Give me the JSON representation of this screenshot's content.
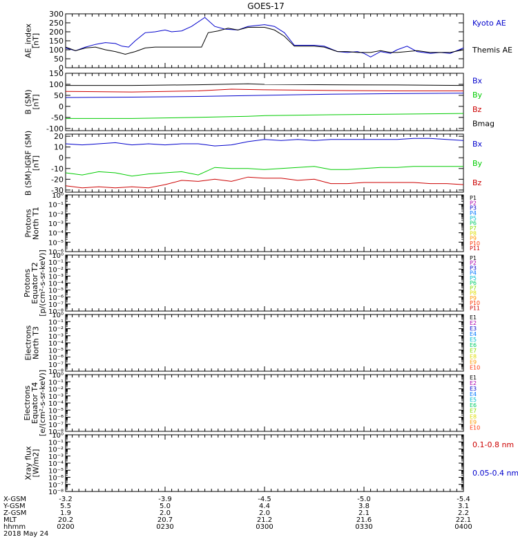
{
  "title": "GOES-17",
  "colors": {
    "black": "#000000",
    "blue": "#0000cc",
    "green": "#00cc00",
    "red": "#cc0000"
  },
  "channel_palette": [
    "#000000",
    "#aa00aa",
    "#0000cc",
    "#0077ff",
    "#00bbcc",
    "#00cc66",
    "#88dd00",
    "#dddd00",
    "#ff9900",
    "#ff3300",
    "#cc0000"
  ],
  "x_axis": {
    "rows": [
      {
        "label": "X-GSM",
        "values": [
          "-3.2",
          "-3.9",
          "-4.5",
          "-5.0",
          "-5.4"
        ]
      },
      {
        "label": "Y-GSM",
        "values": [
          "5.5",
          "5.0",
          "4.4",
          "3.8",
          "3.1"
        ]
      },
      {
        "label": "Z-GSM",
        "values": [
          "1.9",
          "2.0",
          "2.0",
          "2.1",
          "2.2"
        ]
      },
      {
        "label": "MLT",
        "values": [
          "20.2",
          "20.7",
          "21.2",
          "21.6",
          "22.1"
        ]
      },
      {
        "label": "hhmm",
        "values": [
          "0200",
          "0230",
          "0300",
          "0330",
          "0400"
        ]
      }
    ],
    "date": "2018 May 24",
    "time_range_min": [
      0,
      120
    ]
  },
  "chart_data": [
    {
      "type": "line",
      "ylabel": [
        "AE_index",
        "[nT]"
      ],
      "yscale": "linear",
      "ylim": [
        0,
        300
      ],
      "yticks": [
        0,
        50,
        100,
        150,
        200,
        250,
        300
      ],
      "yticklabels": [
        "0",
        "50",
        "100",
        "150",
        "200",
        "250",
        "300"
      ],
      "legend": [
        {
          "text": "Kyoto AE",
          "color": "#0000cc"
        },
        {
          "text": "Themis AE",
          "color": "#000000"
        }
      ],
      "series": [
        {
          "name": "Kyoto AE",
          "color": "#0000cc",
          "x": [
            0,
            3,
            6,
            9,
            12,
            15,
            17,
            19,
            21,
            24,
            27,
            30,
            32,
            35,
            38,
            42,
            45,
            48,
            52,
            55,
            60,
            63,
            66,
            69,
            72,
            75,
            78,
            82,
            85,
            88,
            90,
            92,
            95,
            98,
            100,
            103,
            106,
            110,
            113,
            116,
            120
          ],
          "y": [
            110,
            95,
            115,
            130,
            140,
            135,
            120,
            115,
            150,
            195,
            200,
            210,
            200,
            205,
            230,
            280,
            230,
            215,
            210,
            230,
            240,
            230,
            195,
            125,
            125,
            125,
            120,
            90,
            85,
            90,
            80,
            60,
            90,
            80,
            100,
            120,
            90,
            80,
            85,
            80,
            110
          ]
        },
        {
          "name": "Themis AE",
          "color": "#000000",
          "x": [
            0,
            3,
            6,
            9,
            12,
            15,
            18,
            21,
            24,
            27,
            30,
            33,
            37,
            41,
            43,
            46,
            49,
            52,
            55,
            60,
            63,
            66,
            69,
            72,
            75,
            78,
            82,
            85,
            88,
            90,
            92,
            95,
            98,
            100,
            103,
            106,
            110,
            113,
            116,
            120
          ],
          "y": [
            115,
            95,
            110,
            115,
            100,
            90,
            75,
            90,
            110,
            115,
            115,
            115,
            115,
            115,
            195,
            205,
            220,
            210,
            225,
            225,
            210,
            175,
            120,
            120,
            120,
            115,
            90,
            90,
            85,
            85,
            85,
            95,
            85,
            85,
            90,
            95,
            85,
            85,
            85,
            100
          ]
        }
      ]
    },
    {
      "type": "line",
      "ylabel": [
        "B (SM)",
        "[nT]"
      ],
      "yscale": "linear",
      "ylim": [
        -110,
        150
      ],
      "yticks": [
        -100,
        -50,
        0,
        50,
        100,
        150
      ],
      "yticklabels": [
        "-100",
        "-50",
        "0",
        "50",
        "100",
        "150"
      ],
      "legend": [
        {
          "text": "Bx",
          "color": "#0000cc"
        },
        {
          "text": "By",
          "color": "#00cc00"
        },
        {
          "text": "Bz",
          "color": "#cc0000"
        },
        {
          "text": "Bmag",
          "color": "#000000"
        }
      ],
      "series": [
        {
          "name": "Bx",
          "color": "#0000cc",
          "x": [
            0,
            20,
            40,
            60,
            80,
            100,
            120
          ],
          "y": [
            40,
            42,
            45,
            50,
            55,
            58,
            60
          ]
        },
        {
          "name": "By",
          "color": "#00cc00",
          "x": [
            0,
            20,
            40,
            55,
            60,
            80,
            100,
            120
          ],
          "y": [
            -55,
            -55,
            -50,
            -45,
            -42,
            -38,
            -35,
            -32
          ]
        },
        {
          "name": "Bz",
          "color": "#cc0000",
          "x": [
            0,
            20,
            40,
            50,
            60,
            80,
            100,
            120
          ],
          "y": [
            68,
            65,
            70,
            78,
            75,
            72,
            70,
            70
          ]
        },
        {
          "name": "Bmag",
          "color": "#000000",
          "x": [
            0,
            20,
            40,
            55,
            60,
            80,
            100,
            120
          ],
          "y": [
            95,
            95,
            98,
            102,
            100,
            98,
            97,
            95
          ]
        }
      ]
    },
    {
      "type": "line",
      "ylabel": [
        "B (SM)-IGRF (SM)",
        "[nT]"
      ],
      "yscale": "linear",
      "ylim": [
        -32,
        22
      ],
      "yticks": [
        -30,
        -20,
        -10,
        0,
        10,
        20
      ],
      "yticklabels": [
        "-30",
        "-20",
        "-10",
        "0",
        "10",
        "20"
      ],
      "legend": [
        {
          "text": "Bx",
          "color": "#0000cc"
        },
        {
          "text": "By",
          "color": "#00cc00"
        },
        {
          "text": "Bz",
          "color": "#cc0000"
        }
      ],
      "series": [
        {
          "name": "Bx",
          "color": "#0000cc",
          "x": [
            0,
            5,
            10,
            15,
            20,
            25,
            30,
            35,
            40,
            45,
            50,
            55,
            60,
            65,
            70,
            75,
            80,
            85,
            90,
            95,
            100,
            105,
            110,
            115,
            120
          ],
          "y": [
            13,
            12,
            13,
            14,
            12,
            13,
            12,
            13,
            13,
            11,
            12,
            15,
            17,
            16,
            17,
            16,
            17,
            17,
            17,
            17,
            17,
            18,
            18,
            17,
            16
          ]
        },
        {
          "name": "By",
          "color": "#00cc00",
          "x": [
            0,
            5,
            10,
            15,
            20,
            25,
            30,
            35,
            40,
            45,
            50,
            55,
            60,
            65,
            70,
            75,
            80,
            85,
            90,
            95,
            100,
            105,
            110,
            115,
            120
          ],
          "y": [
            -14,
            -16,
            -13,
            -14,
            -17,
            -15,
            -14,
            -13,
            -16,
            -9,
            -10,
            -10,
            -11,
            -10,
            -9,
            -8,
            -11,
            -11,
            -10,
            -9,
            -9,
            -8,
            -8,
            -8,
            -8
          ]
        },
        {
          "name": "Bz",
          "color": "#cc0000",
          "x": [
            0,
            5,
            10,
            15,
            20,
            25,
            30,
            35,
            40,
            45,
            50,
            55,
            60,
            65,
            70,
            75,
            80,
            85,
            90,
            95,
            100,
            105,
            110,
            115,
            120
          ],
          "y": [
            -26,
            -28,
            -27,
            -28,
            -27,
            -28,
            -25,
            -21,
            -22,
            -20,
            -22,
            -18,
            -19,
            -19,
            -21,
            -20,
            -24,
            -24,
            -23,
            -23,
            -23,
            -23,
            -24,
            -24,
            -25
          ]
        }
      ]
    },
    {
      "type": "line",
      "ylabel": [
        "Protons",
        "North T1"
      ],
      "yscale": "log",
      "ylim": [
        1e-06,
        1
      ],
      "yticklabels": [
        "10⁻⁶",
        "10⁻⁵",
        "10⁻⁴",
        "10⁻³",
        "10⁻²",
        "10⁻¹",
        "10⁰"
      ],
      "channels": [
        "P1",
        "P2",
        "P3",
        "P4",
        "P5",
        "P6",
        "P7",
        "P8",
        "P9",
        "P10",
        "P11"
      ],
      "series": []
    },
    {
      "type": "line",
      "ylabel": [
        "Protons",
        "Equator T2",
        "[p/(cm²-s-sr-keV)]"
      ],
      "yscale": "log",
      "ylim": [
        1e-08,
        1
      ],
      "yticklabels": [
        "10⁻⁸",
        "10⁻⁷",
        "10⁻⁶",
        "10⁻⁵",
        "10⁻⁴",
        "10⁻³",
        "10⁻²",
        "10⁻¹",
        "10⁰"
      ],
      "channels": [
        "P1",
        "P2",
        "P3",
        "P4",
        "P5",
        "P6",
        "P7",
        "P8",
        "P9",
        "P10",
        "P11"
      ],
      "series": []
    },
    {
      "type": "line",
      "ylabel": [
        "Electrons",
        "North T3"
      ],
      "yscale": "log",
      "ylim": [
        1e-08,
        1
      ],
      "yticklabels": [
        "10⁻⁸",
        "10⁻⁷",
        "10⁻⁶",
        "10⁻⁵",
        "10⁻⁴",
        "10⁻³",
        "10⁻²",
        "10⁻¹",
        "10⁰"
      ],
      "channels": [
        "E1",
        "E2",
        "E3",
        "E4",
        "E5",
        "E6",
        "E7",
        "E8",
        "E9",
        "E10"
      ],
      "series": []
    },
    {
      "type": "line",
      "ylabel": [
        "Electrons",
        "Equator T4",
        "[e/(cm²-s-sr-keV)]"
      ],
      "yscale": "log",
      "ylim": [
        1e-08,
        1
      ],
      "yticklabels": [
        "10⁻⁸",
        "10⁻⁷",
        "10⁻⁶",
        "10⁻⁵",
        "10⁻⁴",
        "10⁻³",
        "10⁻²",
        "10⁻¹",
        "10⁰"
      ],
      "channels": [
        "E1",
        "E2",
        "E3",
        "E4",
        "E5",
        "E6",
        "E7",
        "E8",
        "E9",
        "E10"
      ],
      "series": []
    },
    {
      "type": "line",
      "ylabel": [
        "Xray flux",
        "[W/m2]"
      ],
      "yscale": "log",
      "ylim": [
        1e-08,
        1
      ],
      "yticklabels": [
        "10⁻⁸",
        "10⁻⁷",
        "10⁻⁶",
        "10⁻⁵",
        "10⁻⁴",
        "10⁻³",
        "10⁻²",
        "10⁻¹",
        "10⁰"
      ],
      "legend": [
        {
          "text": "0.1-0.8 nm",
          "color": "#cc0000"
        },
        {
          "text": "0.05-0.4 nm",
          "color": "#0000cc"
        }
      ],
      "series": []
    }
  ]
}
